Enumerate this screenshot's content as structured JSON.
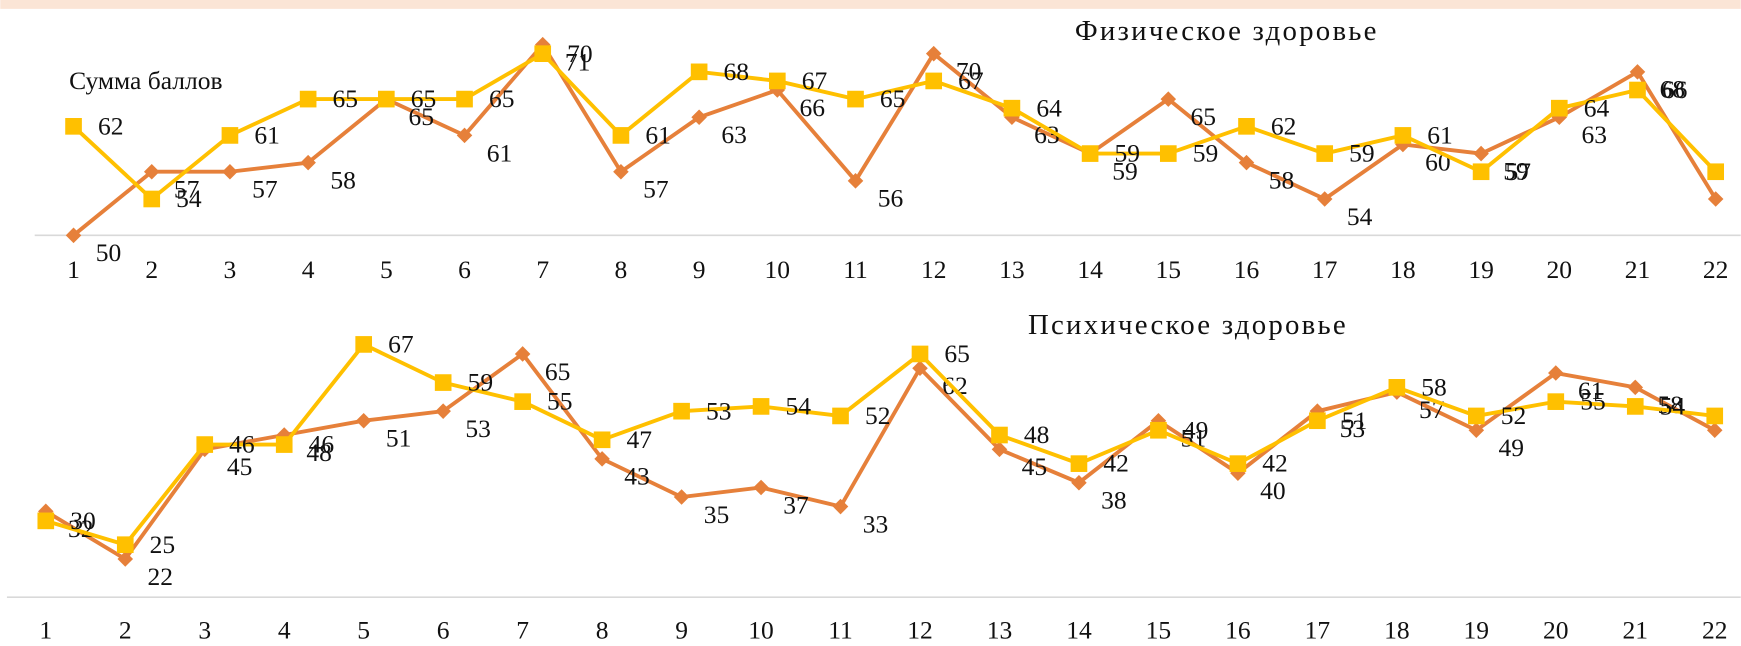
{
  "chart_data": [
    {
      "type": "line",
      "title": "Физическое здоровье",
      "y_label": "Сумма баллов",
      "categories": [
        "1",
        "2",
        "3",
        "4",
        "5",
        "6",
        "7",
        "8",
        "9",
        "10",
        "11",
        "12",
        "13",
        "14",
        "15",
        "16",
        "17",
        "18",
        "19",
        "20",
        "21",
        "22"
      ],
      "series": [
        {
          "color": "#e6803a",
          "marker": "diamond",
          "values": [
            50,
            57,
            57,
            58,
            65,
            61,
            71,
            57,
            63,
            66,
            56,
            70,
            63,
            59,
            65,
            58,
            54,
            60,
            59,
            63,
            68,
            54
          ]
        },
        {
          "color": "#ffc000",
          "marker": "square",
          "values": [
            62,
            54,
            61,
            65,
            65,
            65,
            70,
            61,
            68,
            67,
            65,
            67,
            64,
            59,
            59,
            62,
            59,
            61,
            57,
            64,
            66,
            57
          ]
        }
      ],
      "ylim": [
        50,
        72
      ]
    },
    {
      "type": "line",
      "title": "Психическое здоровье",
      "categories": [
        "1",
        "2",
        "3",
        "4",
        "5",
        "6",
        "7",
        "8",
        "9",
        "10",
        "11",
        "12",
        "13",
        "14",
        "15",
        "16",
        "17",
        "18",
        "19",
        "20",
        "21",
        "22"
      ],
      "series": [
        {
          "color": "#e6803a",
          "marker": "diamond",
          "values": [
            32,
            22,
            45,
            48,
            51,
            53,
            65,
            43,
            35,
            37,
            33,
            62,
            45,
            38,
            51,
            40,
            53,
            57,
            49,
            61,
            58,
            49
          ]
        },
        {
          "color": "#ffc000",
          "marker": "square",
          "values": [
            30,
            25,
            46,
            46,
            67,
            59,
            55,
            47,
            53,
            54,
            52,
            65,
            48,
            42,
            49,
            42,
            51,
            58,
            52,
            55,
            54,
            52
          ]
        }
      ],
      "ylim": [
        14,
        68
      ]
    }
  ]
}
